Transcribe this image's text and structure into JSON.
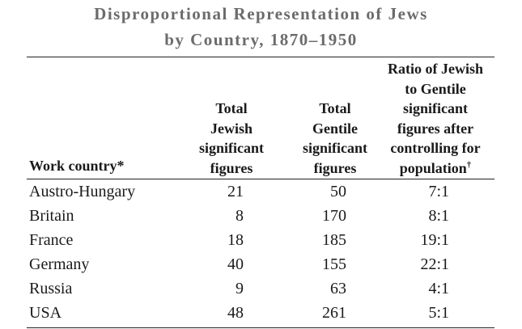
{
  "title": {
    "line1": "Disproportional Representation of Jews",
    "line2": "by Country, 1870–1950"
  },
  "table": {
    "headers": {
      "country": "Work country*",
      "jewish": [
        "Total",
        "Jewish",
        "significant",
        "figures"
      ],
      "gentile": [
        "Total",
        "Gentile",
        "significant",
        "figures"
      ],
      "ratio": [
        "Ratio of Jewish",
        "to Gentile",
        "significant",
        "figures after",
        "controlling for",
        "population"
      ],
      "ratio_mark": "†"
    },
    "rows": [
      {
        "country": "Austro-Hungary",
        "jewish": "21",
        "gentile": "50",
        "ratio": "7:1"
      },
      {
        "country": "Britain",
        "jewish": "8",
        "gentile": "170",
        "ratio": "8:1"
      },
      {
        "country": "France",
        "jewish": "18",
        "gentile": "185",
        "ratio": "19:1"
      },
      {
        "country": "Germany",
        "jewish": "40",
        "gentile": "155",
        "ratio": "22:1"
      },
      {
        "country": "Russia",
        "jewish": "9",
        "gentile": "63",
        "ratio": "4:1"
      },
      {
        "country": "USA",
        "jewish": "48",
        "gentile": "261",
        "ratio": "5:1"
      }
    ]
  }
}
